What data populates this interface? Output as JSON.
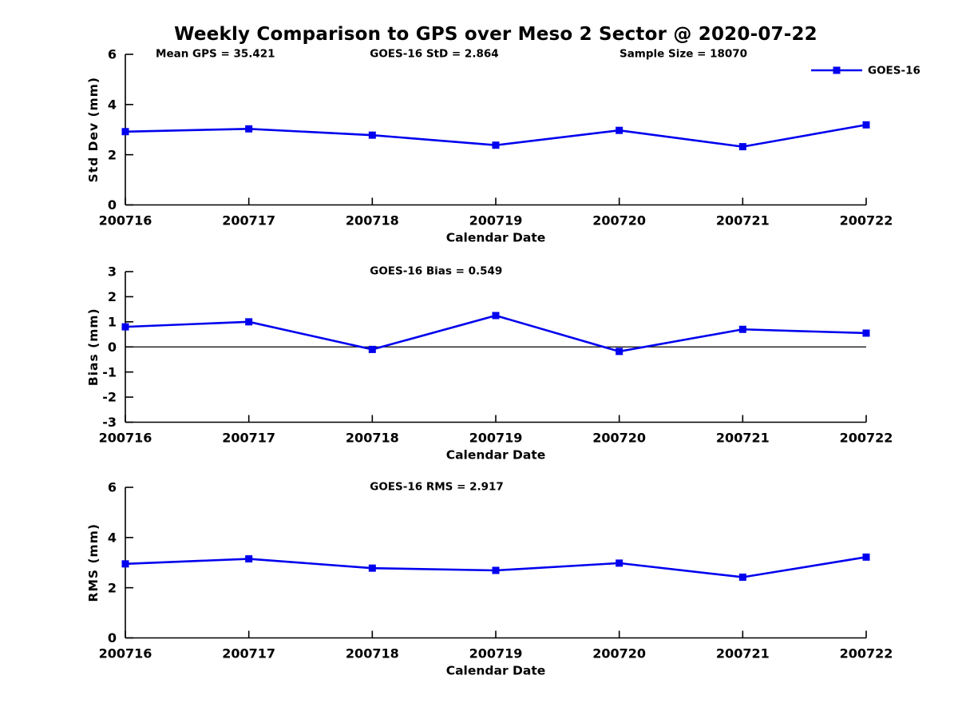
{
  "title": "Weekly Comparison to GPS over Meso 2 Sector @ 2020-07-22",
  "legend": {
    "label": "GOES-16",
    "color": "#0000EE"
  },
  "colors": {
    "series": "#0000EE",
    "axis": "#000000",
    "background": "#FFFFFF"
  },
  "chart_data": [
    {
      "type": "line",
      "name": "std-dev",
      "title": "",
      "xlabel": "Calendar Date",
      "ylabel": "Std Dev (mm)",
      "x": [
        "200716",
        "200717",
        "200718",
        "200719",
        "200720",
        "200721",
        "200722"
      ],
      "series": [
        {
          "name": "GOES-16",
          "values": [
            2.92,
            3.03,
            2.78,
            2.38,
            2.97,
            2.32,
            3.19
          ]
        }
      ],
      "ylim": [
        0,
        6
      ],
      "yticks": [
        0,
        2,
        4,
        6
      ],
      "grid": false,
      "zero_line": false,
      "legend": {
        "show": true,
        "position": "northeast-outside",
        "label": "GOES-16"
      },
      "annotations": [
        {
          "text": "Mean GPS = 35.421",
          "xfrac": 0.041
        },
        {
          "text": "GOES-16 StD = 2.864",
          "xfrac": 0.33
        },
        {
          "text": "Sample Size = 18070",
          "xfrac": 0.667
        }
      ]
    },
    {
      "type": "line",
      "name": "bias",
      "title": "",
      "xlabel": "Calendar Date",
      "ylabel": "Bias (mm)",
      "x": [
        "200716",
        "200717",
        "200718",
        "200719",
        "200720",
        "200721",
        "200722"
      ],
      "series": [
        {
          "name": "GOES-16",
          "values": [
            0.8,
            1.0,
            -0.1,
            1.25,
            -0.18,
            0.7,
            0.55
          ]
        }
      ],
      "ylim": [
        -3,
        3
      ],
      "yticks": [
        3,
        2,
        1,
        0,
        -1,
        -2,
        -3
      ],
      "grid": false,
      "zero_line": true,
      "legend": {
        "show": false
      },
      "annotations": [
        {
          "text": "GOES-16 Bias  = 0.549",
          "xfrac": 0.33
        }
      ]
    },
    {
      "type": "line",
      "name": "rms",
      "title": "",
      "xlabel": "Calendar Date",
      "ylabel": "RMS (mm)",
      "x": [
        "200716",
        "200717",
        "200718",
        "200719",
        "200720",
        "200721",
        "200722"
      ],
      "series": [
        {
          "name": "GOES-16",
          "values": [
            2.95,
            3.15,
            2.78,
            2.69,
            2.98,
            2.42,
            3.22
          ]
        }
      ],
      "ylim": [
        0,
        6
      ],
      "yticks": [
        0,
        2,
        4,
        6
      ],
      "grid": false,
      "zero_line": false,
      "legend": {
        "show": false
      },
      "annotations": [
        {
          "text": "GOES-16 RMS = 2.917",
          "xfrac": 0.33
        }
      ]
    }
  ]
}
